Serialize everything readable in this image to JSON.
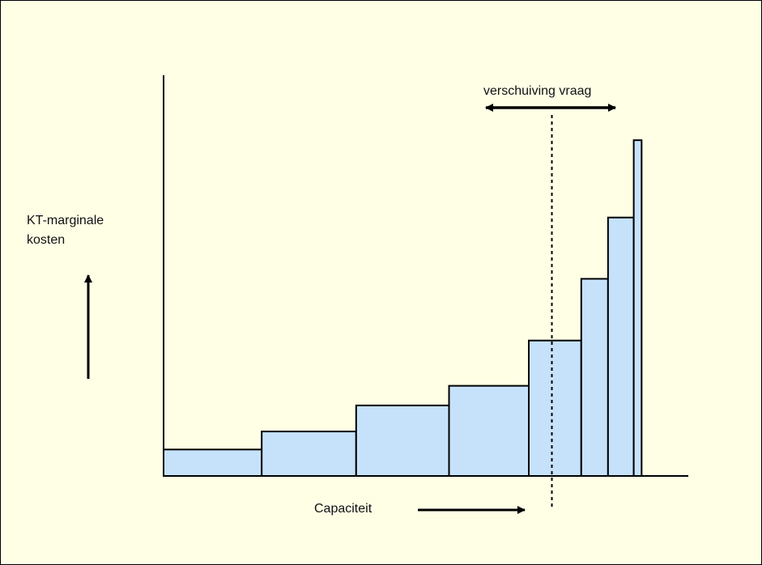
{
  "chart_data": {
    "type": "bar",
    "title": "",
    "ylabel_lines": [
      "KT-marginale",
      "kosten"
    ],
    "xlabel": "Capaciteit",
    "annotation": "verschuiving vraag",
    "grid": false,
    "legend": "none",
    "xlim": [
      0,
      100
    ],
    "ylim": [
      0,
      100
    ],
    "bars": [
      {
        "x0": 0,
        "x1": 18.7,
        "value": 6.6
      },
      {
        "x0": 18.7,
        "x1": 36.7,
        "value": 11.1
      },
      {
        "x0": 36.7,
        "x1": 54.4,
        "value": 17.6
      },
      {
        "x0": 54.4,
        "x1": 69.6,
        "value": 22.5
      },
      {
        "x0": 69.6,
        "x1": 79.6,
        "value": 33.8
      },
      {
        "x0": 79.6,
        "x1": 84.7,
        "value": 49.2
      },
      {
        "x0": 84.7,
        "x1": 89.6,
        "value": 64.5
      },
      {
        "x0": 89.6,
        "x1": 91.1,
        "value": 83.8
      }
    ],
    "demand_line_x": 74
  },
  "colors": {
    "background": "#ffffe6",
    "bar_fill": "#c6e2fb",
    "stroke": "#000000"
  }
}
